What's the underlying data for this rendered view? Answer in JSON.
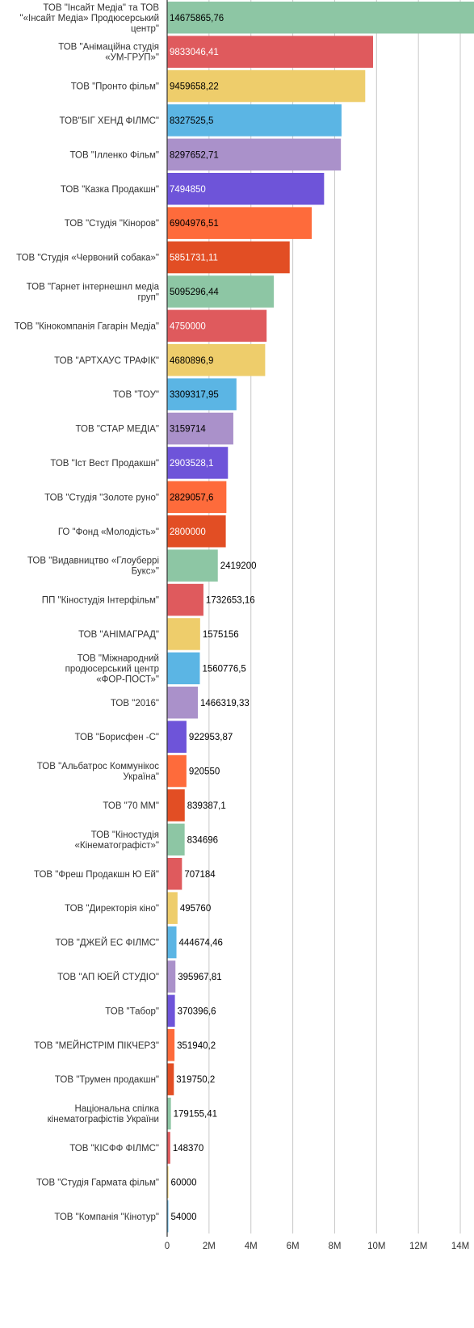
{
  "chart_data": {
    "type": "bar",
    "orientation": "horizontal",
    "title": "",
    "xlabel": "",
    "ylabel": "",
    "xlim": [
      0,
      14500000
    ],
    "grid": true,
    "x_ticks": [
      {
        "value": 0,
        "label": "0"
      },
      {
        "value": 2000000,
        "label": "2M"
      },
      {
        "value": 4000000,
        "label": "4M"
      },
      {
        "value": 6000000,
        "label": "6M"
      },
      {
        "value": 8000000,
        "label": "8M"
      },
      {
        "value": 10000000,
        "label": "10M"
      },
      {
        "value": 12000000,
        "label": "12M"
      },
      {
        "value": 14000000,
        "label": "14M"
      }
    ],
    "palette": [
      "#8dc6a4",
      "#df5a5d",
      "#eecd6b",
      "#5bb5e4",
      "#aa91ca",
      "#6e54d9",
      "#fe6b3b",
      "#e24e24"
    ],
    "categories": [
      [
        "ТОВ \"Інсайт Медіа\" та ТОВ",
        "\"«Інсайт Медіа» Продюсерський",
        "центр\""
      ],
      [
        "ТОВ \"Анімаційна студія",
        "«УМ-ГРУП»\""
      ],
      [
        "ТОВ \"Пронто фільм\""
      ],
      [
        "ТОВ\"БІГ ХЕНД ФІЛМС\""
      ],
      [
        "ТОВ \"Ілленко Фільм\""
      ],
      [
        "ТОВ \"Казка Продакшн\""
      ],
      [
        "ТОВ \"Студія \"Кіноров\""
      ],
      [
        "ТОВ \"Студія «Червоний собака»\""
      ],
      [
        "ТОВ \"Гарнет інтернешнл медіа",
        "груп\""
      ],
      [
        "ТОВ \"Кінокомпанія Гагарін Медіа\""
      ],
      [
        "ТОВ \"АРТХАУС ТРАФІК\""
      ],
      [
        "ТОВ \"ТОУ\""
      ],
      [
        "ТОВ \"СТАР МЕДІА\""
      ],
      [
        "ТОВ \"Іст Вест Продакшн\""
      ],
      [
        "ТОВ \"Студія \"Золоте руно\""
      ],
      [
        "ГО \"Фонд «Молодість»\""
      ],
      [
        "ТОВ \"Видавництво «Глоуберрі",
        "Букс»\""
      ],
      [
        "ПП \"Кіностудія Інтерфільм\""
      ],
      [
        "ТОВ \"АНІМАГРАД\""
      ],
      [
        "ТОВ \"Міжнародний",
        "продюсерський центр",
        "«ФОР-ПОСТ»\""
      ],
      [
        "ТОВ \"2016\""
      ],
      [
        "ТОВ \"Борисфен -С\""
      ],
      [
        "ТОВ \"Альбатрос Коммунікос",
        "Україна\""
      ],
      [
        "ТОВ \"70 ММ\""
      ],
      [
        "ТОВ \"Кіностудія",
        "«Кінематографіст»\""
      ],
      [
        "ТОВ \"Фреш Продакшн Ю Ей\""
      ],
      [
        "ТОВ \"Директорія кіно\""
      ],
      [
        "ТОВ \"ДЖЕЙ ЕС ФІЛМС\""
      ],
      [
        "ТОВ \"АП ЮЕЙ СТУДІО\""
      ],
      [
        "ТОВ \"Табор\""
      ],
      [
        "ТОВ \"МЕЙНСТРІМ ПІКЧЕРЗ\""
      ],
      [
        "ТОВ \"Трумен продакшн\""
      ],
      [
        "Національна спілка",
        "кінематографістів України"
      ],
      [
        "ТОВ \"КІСФФ ФІЛМС\""
      ],
      [
        "ТОВ \"Студія Гармата фільм\""
      ],
      [
        "ТОВ \"Компанія \"Кінотур\""
      ]
    ],
    "values": [
      14675865.76,
      9833046.41,
      9459658.22,
      8327525.5,
      8297652.71,
      7494850,
      6904976.51,
      5851731.11,
      5095296.44,
      4750000,
      4680896.9,
      3309317.95,
      3159714,
      2903528.1,
      2829057.6,
      2800000,
      2419200,
      1732653.16,
      1575156,
      1560776.5,
      1466319.33,
      922953.87,
      920550,
      839387.1,
      834696,
      707184,
      495760,
      444674.46,
      395967.81,
      370396.6,
      351940.2,
      319750.2,
      179155.41,
      148370,
      60000,
      54000
    ],
    "value_labels": [
      "14675865,76",
      "9833046,41",
      "9459658,22",
      "8327525,5",
      "8297652,71",
      "7494850",
      "6904976,51",
      "5851731,11",
      "5095296,44",
      "4750000",
      "4680896,9",
      "3309317,95",
      "3159714",
      "2903528,1",
      "2829057,6",
      "2800000",
      "2419200",
      "1732653,16",
      "1575156",
      "1560776,5",
      "1466319,33",
      "922953,87",
      "920550",
      "839387,1",
      "834696",
      "707184",
      "495760",
      "444674,46",
      "395967,81",
      "370396,6",
      "351940,2",
      "319750,2",
      "179155,41",
      "148370",
      "60000",
      "54000"
    ]
  }
}
